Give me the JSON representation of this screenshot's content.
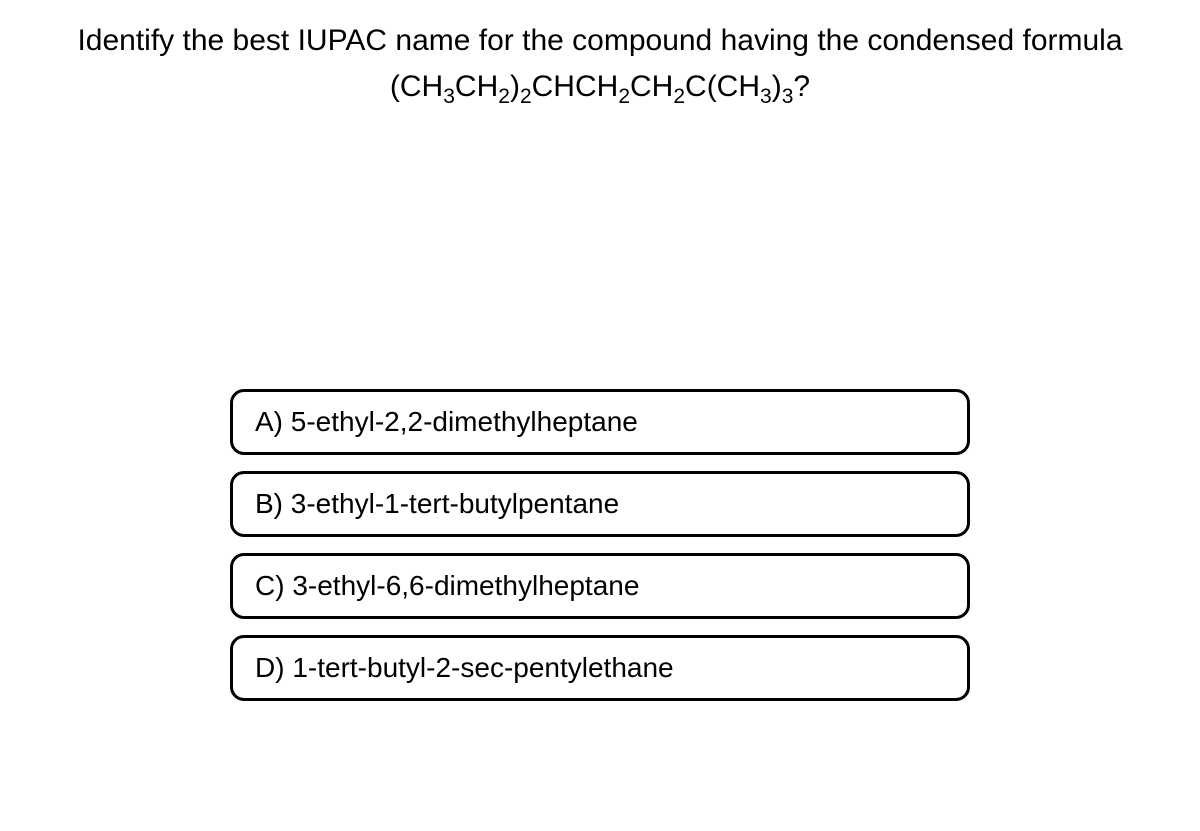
{
  "question": {
    "text": "Identify the best IUPAC name for the compound having the condensed formula",
    "formula_parts": {
      "p1": "(CH",
      "s1": "3",
      "p2": "CH",
      "s2": "2",
      "p3": ")",
      "s3": "2",
      "p4": "CHCH",
      "s4": "2",
      "p5": "CH",
      "s5": "2",
      "p6": "C(CH",
      "s6": "3",
      "p7": ")",
      "s7": "3",
      "p8": "?"
    }
  },
  "options": {
    "a": "A) 5-ethyl-2,2-dimethylheptane",
    "b": "B) 3-ethyl-1-tert-butylpentane",
    "c": "C) 3-ethyl-6,6-dimethylheptane",
    "d": "D) 1-tert-butyl-2-sec-pentylethane"
  },
  "colors": {
    "background": "#ffffff",
    "text": "#000000",
    "border": "#000000"
  },
  "styling": {
    "question_fontsize": 30,
    "option_fontsize": 28,
    "option_border_width": 3,
    "option_border_radius": 14,
    "option_width": 740
  }
}
